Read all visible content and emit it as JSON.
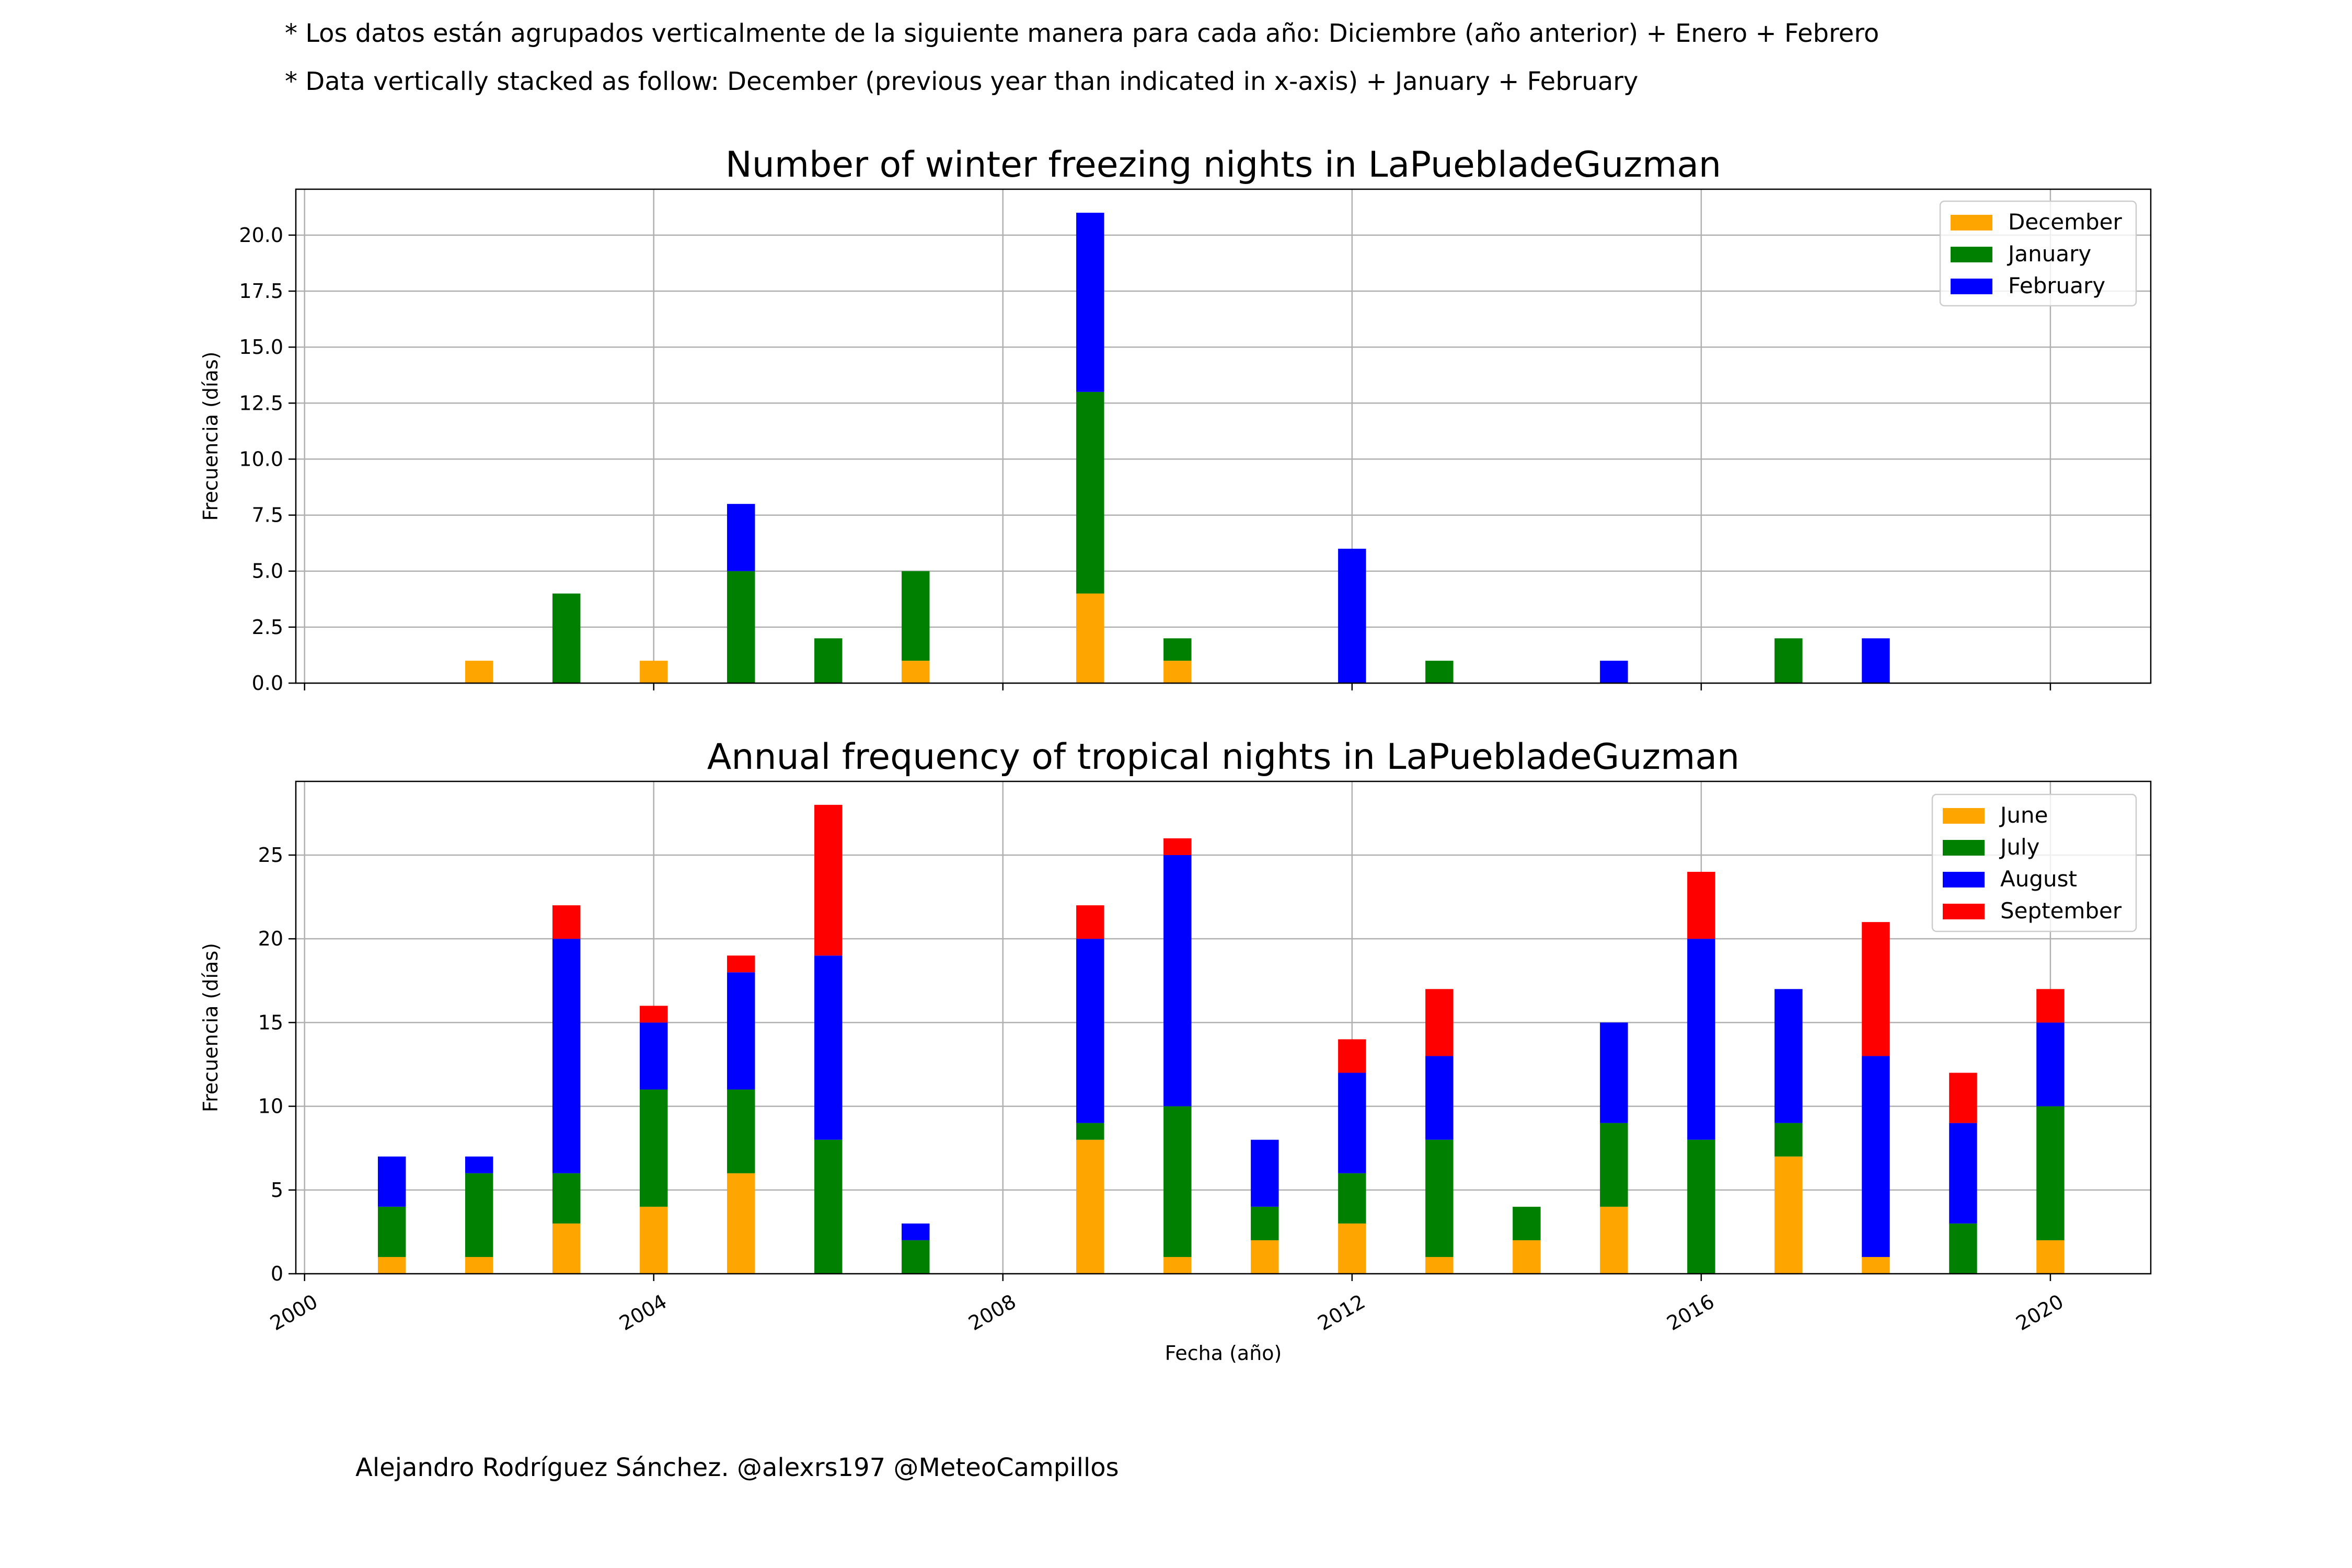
{
  "notes": [
    "* Los datos están agrupados verticalmente de la siguiente manera para cada año: Diciembre (año anterior) + Enero  + Febrero",
    "* Data vertically stacked as follow: December (previous year than indicated in x-axis) + January  + February"
  ],
  "credit": "Alejandro Rodríguez Sánchez. @alexrs197 @MeteoCampillos",
  "chart_data": [
    {
      "type": "bar",
      "stacked": true,
      "title": "Number of winter freezing nights in LaPuebladeGuzman",
      "ylabel": "Frecuencia (días)",
      "xlabel": "",
      "x": [
        2001,
        2002,
        2003,
        2004,
        2005,
        2006,
        2007,
        2008,
        2009,
        2010,
        2011,
        2012,
        2013,
        2014,
        2015,
        2016,
        2017,
        2018,
        2019,
        2020
      ],
      "series": [
        {
          "name": "December",
          "color": "#ffa500",
          "values": [
            0,
            1,
            0,
            1,
            0,
            0,
            1,
            0,
            4,
            1,
            0,
            0,
            0,
            0,
            0,
            0,
            0,
            0,
            0,
            0
          ]
        },
        {
          "name": "January",
          "color": "#008000",
          "values": [
            0,
            0,
            4,
            0,
            5,
            2,
            4,
            0,
            9,
            1,
            0,
            0,
            1,
            0,
            0,
            0,
            2,
            0,
            0,
            0
          ]
        },
        {
          "name": "February",
          "color": "#0000ff",
          "values": [
            0,
            0,
            0,
            0,
            3,
            0,
            0,
            0,
            8,
            0,
            0,
            6,
            0,
            0,
            1,
            0,
            0,
            2,
            0,
            0
          ]
        }
      ],
      "xlim": [
        1999.9,
        2021.15
      ],
      "ylim": [
        0,
        22.05
      ],
      "yticks": [
        "0.0",
        "2.5",
        "5.0",
        "7.5",
        "10.0",
        "12.5",
        "15.0",
        "17.5",
        "20.0"
      ],
      "ytick_values": [
        0,
        2.5,
        5,
        7.5,
        10,
        12.5,
        15,
        17.5,
        20
      ],
      "xtick_values": [
        2000,
        2004,
        2008,
        2012,
        2016,
        2020
      ],
      "grid": true,
      "legend": "top-right"
    },
    {
      "type": "bar",
      "stacked": true,
      "title": "Annual frequency of tropical nights in LaPuebladeGuzman",
      "ylabel": "Frecuencia (días)",
      "xlabel": "Fecha (año)",
      "x": [
        2001,
        2002,
        2003,
        2004,
        2005,
        2006,
        2007,
        2008,
        2009,
        2010,
        2011,
        2012,
        2013,
        2014,
        2015,
        2016,
        2017,
        2018,
        2019,
        2020
      ],
      "series": [
        {
          "name": "June",
          "color": "#ffa500",
          "values": [
            1,
            1,
            3,
            4,
            6,
            0,
            0,
            0,
            8,
            1,
            2,
            3,
            1,
            2,
            4,
            0,
            7,
            1,
            0,
            2
          ]
        },
        {
          "name": "July",
          "color": "#008000",
          "values": [
            3,
            5,
            3,
            7,
            5,
            8,
            2,
            0,
            1,
            9,
            2,
            3,
            7,
            2,
            5,
            8,
            2,
            0,
            3,
            8
          ]
        },
        {
          "name": "August",
          "color": "#0000ff",
          "values": [
            3,
            1,
            14,
            4,
            7,
            11,
            1,
            0,
            11,
            15,
            4,
            6,
            5,
            0,
            6,
            12,
            8,
            12,
            6,
            5
          ]
        },
        {
          "name": "September",
          "color": "#ff0000",
          "values": [
            0,
            0,
            2,
            1,
            1,
            9,
            0,
            0,
            2,
            1,
            0,
            2,
            4,
            0,
            0,
            4,
            0,
            8,
            3,
            2
          ]
        }
      ],
      "xlim": [
        1999.9,
        2021.15
      ],
      "ylim": [
        0,
        29.4
      ],
      "yticks": [
        "0",
        "5",
        "10",
        "15",
        "20",
        "25"
      ],
      "ytick_values": [
        0,
        5,
        10,
        15,
        20,
        25
      ],
      "xticks": [
        "2000",
        "2004",
        "2008",
        "2012",
        "2016",
        "2020"
      ],
      "xtick_values": [
        2000,
        2004,
        2008,
        2012,
        2016,
        2020
      ],
      "grid": true,
      "legend": "top-right"
    }
  ]
}
